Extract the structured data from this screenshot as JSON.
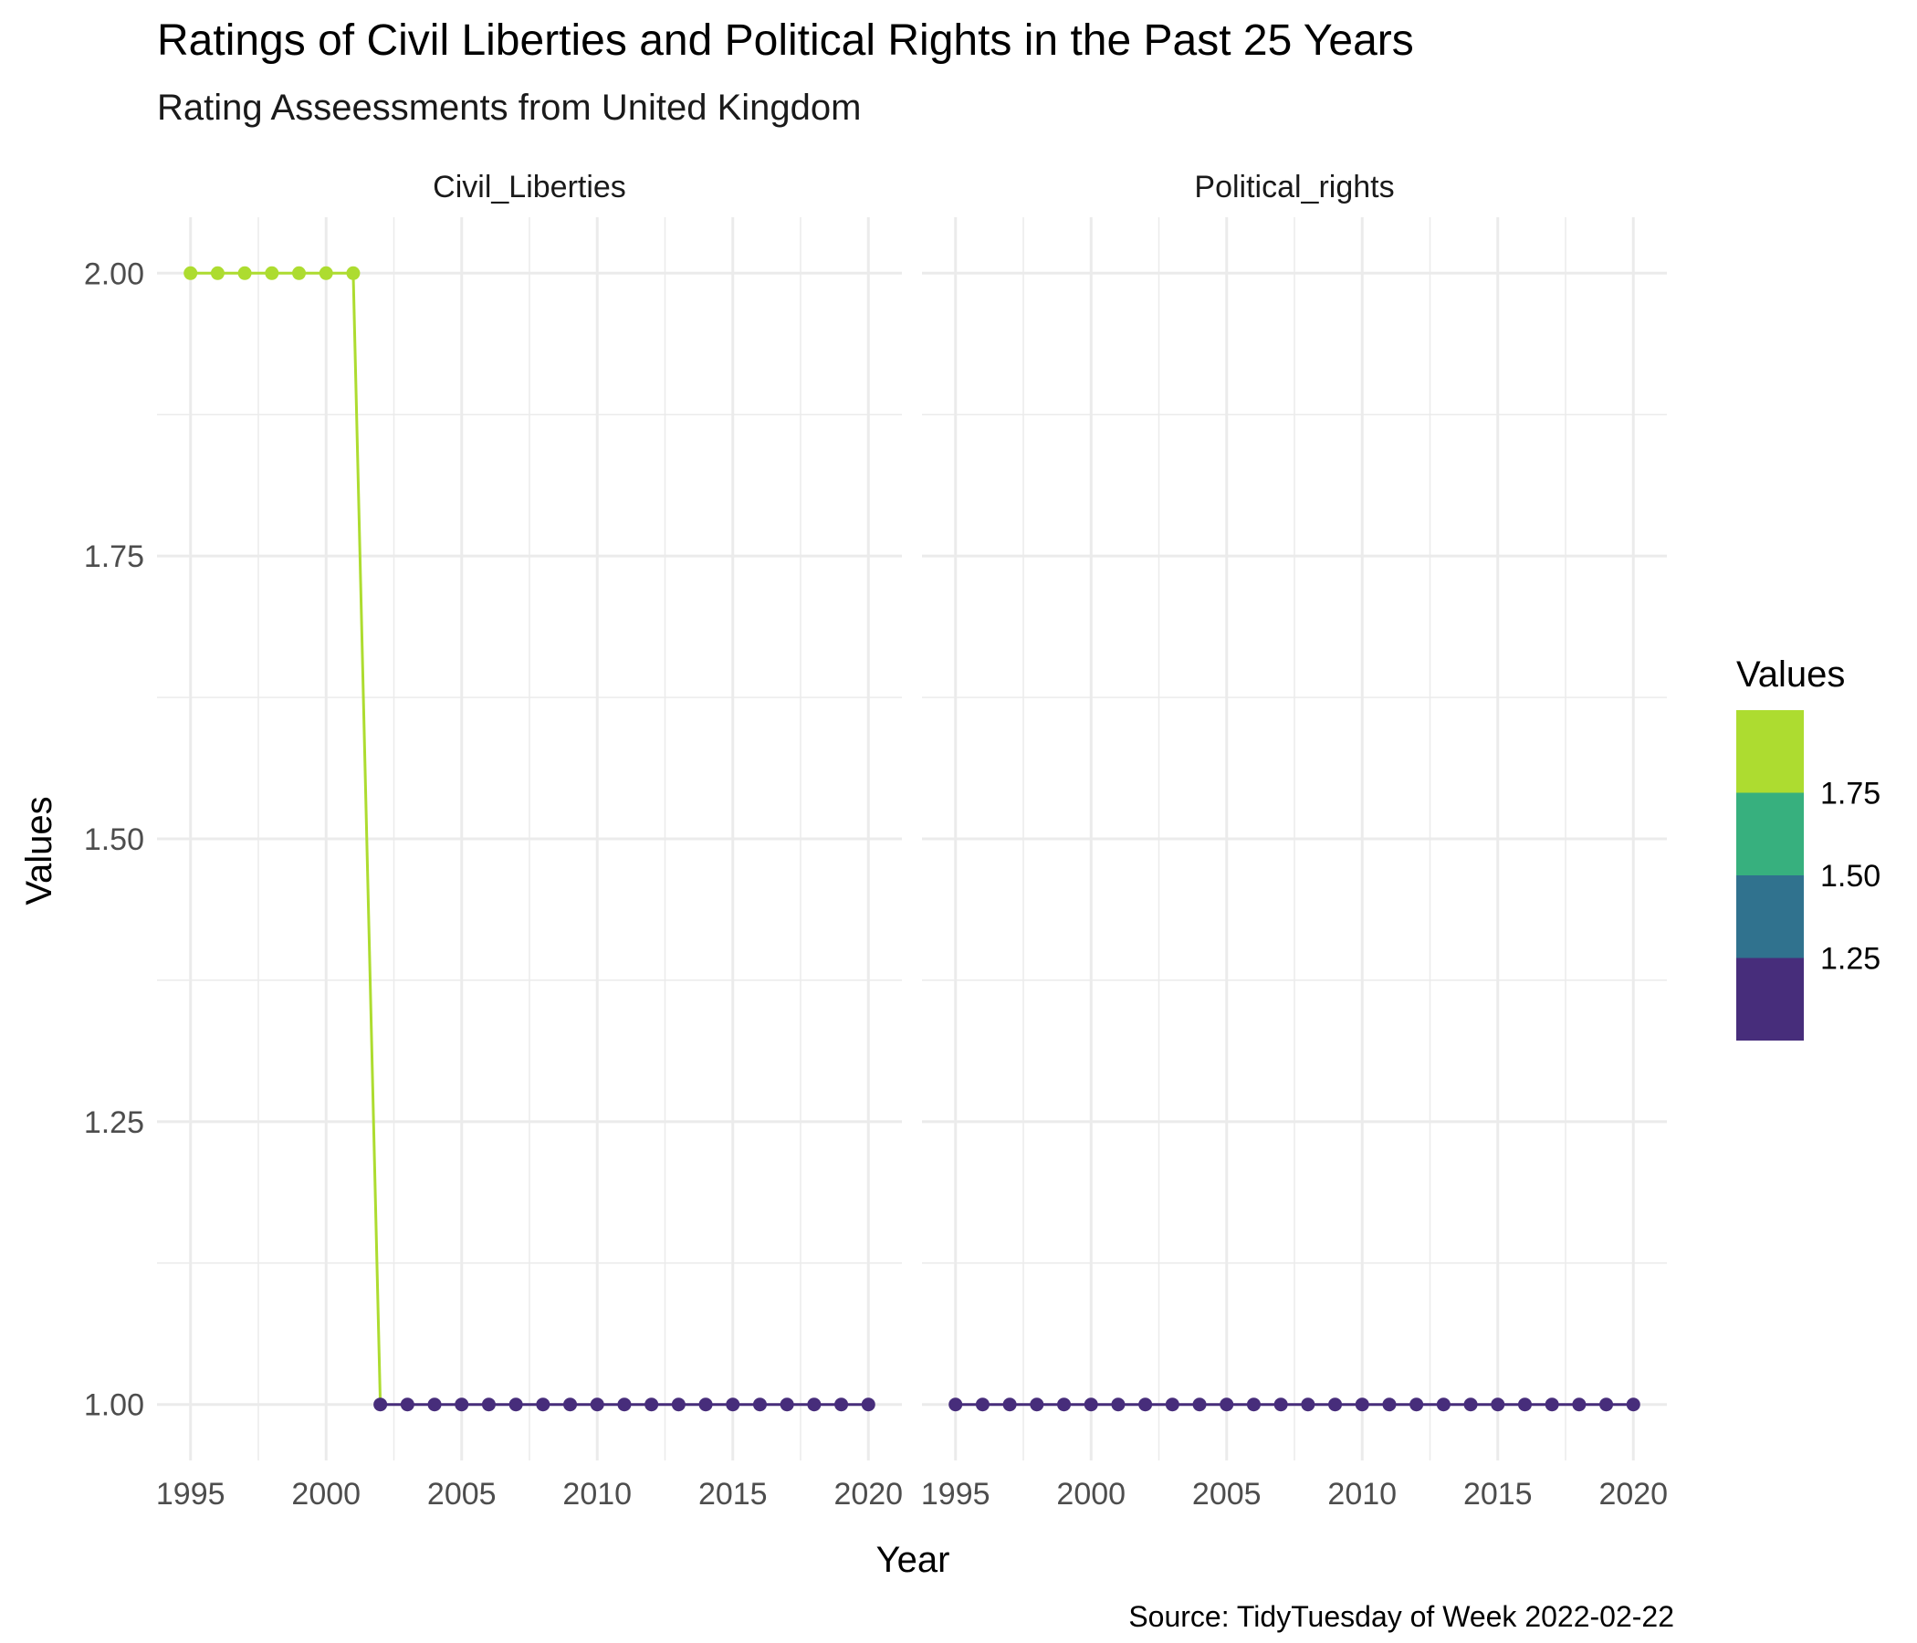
{
  "chart_data": {
    "type": "line",
    "title": "Ratings of Civil Liberties and Political Rights in the Past 25 Years",
    "subtitle": "Rating Asseessments from United Kingdom",
    "xlabel": "Year",
    "ylabel": "Values",
    "caption": "Source: TidyTuesday of Week 2022-02-22",
    "xlim": [
      1995,
      2020
    ],
    "ylim": [
      1.0,
      2.0
    ],
    "x_ticks": [
      1995,
      2000,
      2005,
      2010,
      2015,
      2020
    ],
    "y_ticks": [
      1.0,
      1.25,
      1.5,
      1.75,
      2.0
    ],
    "y_tick_labels": [
      "1.00",
      "1.25",
      "1.50",
      "1.75",
      "2.00"
    ],
    "grid": true,
    "legend_placement": "right",
    "legend": {
      "title": "Values",
      "ticks": [
        "1.75",
        "1.50",
        "1.25"
      ],
      "bins": [
        {
          "range": [
            1.75,
            2.0
          ],
          "color": "#addc30"
        },
        {
          "range": [
            1.5,
            1.75
          ],
          "color": "#37b07e"
        },
        {
          "range": [
            1.25,
            1.5
          ],
          "color": "#30728e"
        },
        {
          "range": [
            1.0,
            1.25
          ],
          "color": "#472d7b"
        }
      ]
    },
    "panels": [
      {
        "name": "Civil_Liberties",
        "x": [
          1995,
          1996,
          1997,
          1998,
          1999,
          2000,
          2001,
          2002,
          2003,
          2004,
          2005,
          2006,
          2007,
          2008,
          2009,
          2010,
          2011,
          2012,
          2013,
          2014,
          2015,
          2016,
          2017,
          2018,
          2019,
          2020
        ],
        "values": [
          2,
          2,
          2,
          2,
          2,
          2,
          2,
          1,
          1,
          1,
          1,
          1,
          1,
          1,
          1,
          1,
          1,
          1,
          1,
          1,
          1,
          1,
          1,
          1,
          1,
          1
        ]
      },
      {
        "name": "Political_rights",
        "x": [
          1995,
          1996,
          1997,
          1998,
          1999,
          2000,
          2001,
          2002,
          2003,
          2004,
          2005,
          2006,
          2007,
          2008,
          2009,
          2010,
          2011,
          2012,
          2013,
          2014,
          2015,
          2016,
          2017,
          2018,
          2019,
          2020
        ],
        "values": [
          1,
          1,
          1,
          1,
          1,
          1,
          1,
          1,
          1,
          1,
          1,
          1,
          1,
          1,
          1,
          1,
          1,
          1,
          1,
          1,
          1,
          1,
          1,
          1,
          1,
          1
        ]
      }
    ]
  }
}
